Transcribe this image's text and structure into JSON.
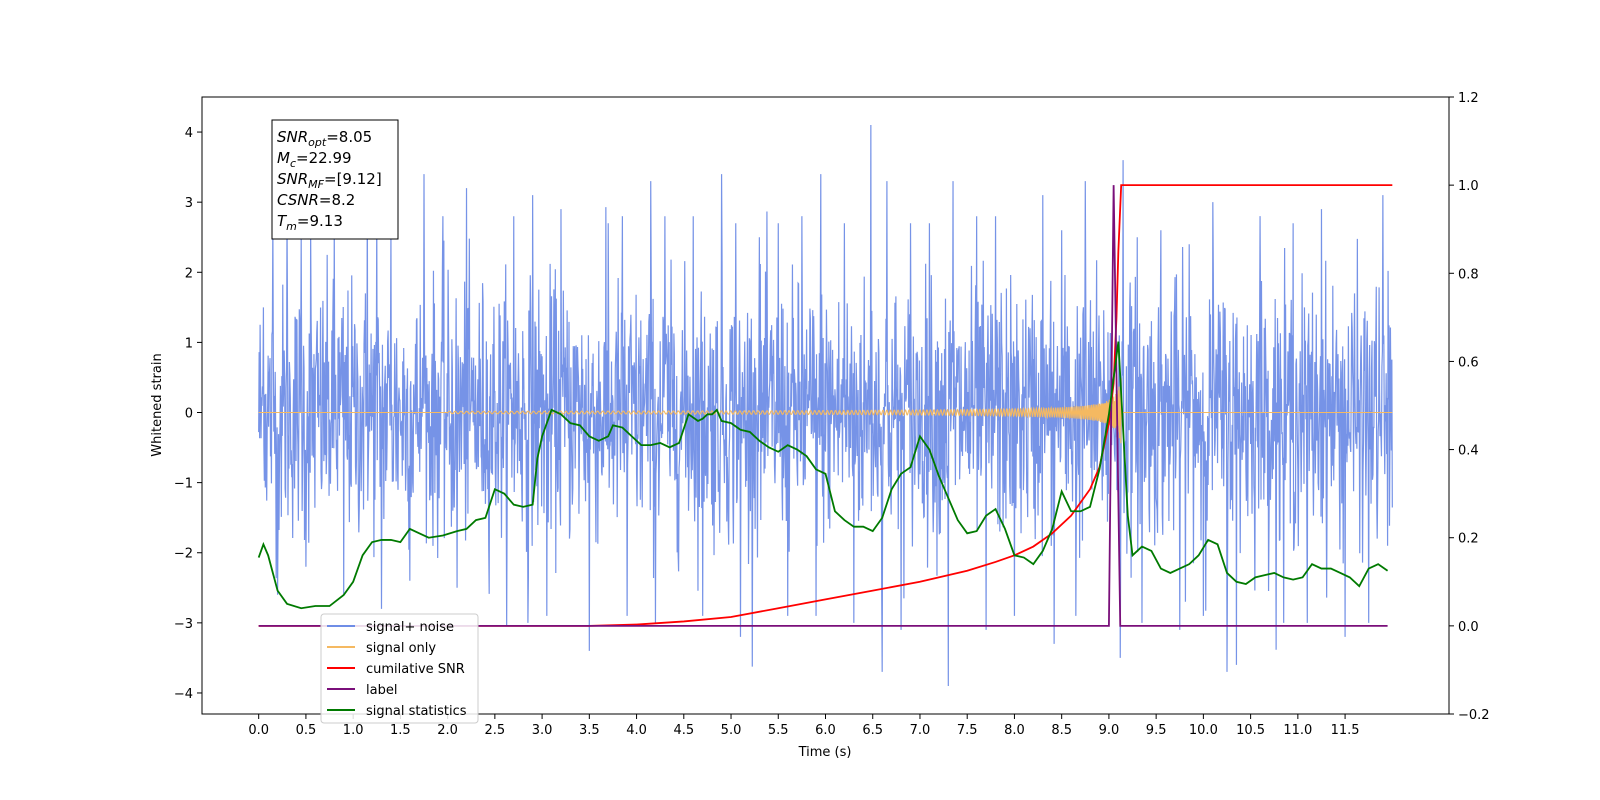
{
  "chart_data": {
    "type": "line",
    "xlabel": "Time (s)",
    "ylabel": "Whitened strain",
    "xlim": [
      -0.6,
      12.6
    ],
    "ylim": [
      -4.3,
      4.5
    ],
    "y2lim": [
      -0.2,
      1.2
    ],
    "x_ticks": [
      0.0,
      0.5,
      1.0,
      1.5,
      2.0,
      2.5,
      3.0,
      3.5,
      4.0,
      4.5,
      5.0,
      5.5,
      6.0,
      6.5,
      7.0,
      7.5,
      8.0,
      8.5,
      9.0,
      9.5,
      10.0,
      10.5,
      11.0,
      11.5
    ],
    "x_tick_labels": [
      "0.0",
      "0.5",
      "1.0",
      "1.5",
      "2.0",
      "2.5",
      "3.0",
      "3.5",
      "4.0",
      "4.5",
      "5.0",
      "5.5",
      "6.0",
      "6.5",
      "7.0",
      "7.5",
      "8.0",
      "8.5",
      "9.0",
      "9.5",
      "10.0",
      "10.5",
      "11.0",
      "11.5"
    ],
    "y_ticks": [
      -4,
      -3,
      -2,
      -1,
      0,
      1,
      2,
      3,
      4
    ],
    "y_tick_labels": [
      "−4",
      "−3",
      "−2",
      "−1",
      "0",
      "1",
      "2",
      "3",
      "4"
    ],
    "y2_ticks": [
      -0.2,
      0.0,
      0.2,
      0.4,
      0.6,
      0.8,
      1.0,
      1.2
    ],
    "y2_tick_labels": [
      "−0.2",
      "0.0",
      "0.2",
      "0.4",
      "0.6",
      "0.8",
      "1.0",
      "1.2"
    ],
    "grid": false,
    "legend_position": "lower-left",
    "info_box": {
      "lines": [
        {
          "base": "SNR",
          "sub": "opt",
          "value": "=8.05"
        },
        {
          "base": "M",
          "sub": "c",
          "value": "=22.99"
        },
        {
          "base": "SNR",
          "sub": "MF",
          "value": "=[9.12]"
        },
        {
          "base": "CSNR",
          "sub": "",
          "value": "=8.2"
        },
        {
          "base": "T",
          "sub": "m",
          "value": "=9.13"
        }
      ]
    },
    "merger_time": 9.13,
    "x_start": 0.0,
    "x_end": 12.0,
    "series": [
      {
        "name": "signal+ noise",
        "color": "#6f8de6",
        "axis": "left",
        "noise_std": 0.9,
        "spikes": [
          [
            0.05,
            1.5
          ],
          [
            0.15,
            2.7
          ],
          [
            0.3,
            2.8
          ],
          [
            0.45,
            2.5
          ],
          [
            0.55,
            2.6
          ],
          [
            0.8,
            2.7
          ],
          [
            1.15,
            3.3
          ],
          [
            1.25,
            2.9
          ],
          [
            1.4,
            2.6
          ],
          [
            1.75,
            3.4
          ],
          [
            1.95,
            2.8
          ],
          [
            2.2,
            3.2
          ],
          [
            2.7,
            2.8
          ],
          [
            2.9,
            3.1
          ],
          [
            3.05,
            2.4
          ],
          [
            3.2,
            2.9
          ],
          [
            3.7,
            2.7
          ],
          [
            3.85,
            2.8
          ],
          [
            4.15,
            3.3
          ],
          [
            4.3,
            2.8
          ],
          [
            4.6,
            2.8
          ],
          [
            4.9,
            3.4
          ],
          [
            5.05,
            2.7
          ],
          [
            5.3,
            2.5
          ],
          [
            5.5,
            2.7
          ],
          [
            5.75,
            2.8
          ],
          [
            5.95,
            3.4
          ],
          [
            6.2,
            2.7
          ],
          [
            6.48,
            4.1
          ],
          [
            6.65,
            3.3
          ],
          [
            6.9,
            2.7
          ],
          [
            7.1,
            2.7
          ],
          [
            7.35,
            3.3
          ],
          [
            7.6,
            2.8
          ],
          [
            7.8,
            2.8
          ],
          [
            8.0,
            2.6
          ],
          [
            8.3,
            3.1
          ],
          [
            8.5,
            2.6
          ],
          [
            8.75,
            3.3
          ],
          [
            9.15,
            3.6
          ],
          [
            9.3,
            2.5
          ],
          [
            9.55,
            2.6
          ],
          [
            9.85,
            2.4
          ],
          [
            10.1,
            3.0
          ],
          [
            10.35,
            3.2
          ],
          [
            10.6,
            2.8
          ],
          [
            10.95,
            2.7
          ],
          [
            11.25,
            2.9
          ],
          [
            11.5,
            3.2
          ],
          [
            11.75,
            3.0
          ],
          [
            11.9,
            3.1
          ],
          [
            0.2,
            -2.6
          ],
          [
            0.5,
            -2.2
          ],
          [
            0.9,
            -2.6
          ],
          [
            1.3,
            -2.8
          ],
          [
            1.6,
            -2.4
          ],
          [
            2.1,
            -2.5
          ],
          [
            2.85,
            -3.0
          ],
          [
            3.05,
            -2.9
          ],
          [
            3.5,
            -3.4
          ],
          [
            3.9,
            -2.9
          ],
          [
            4.2,
            -3.0
          ],
          [
            4.7,
            -2.9
          ],
          [
            5.1,
            -3.2
          ],
          [
            5.6,
            -2.9
          ],
          [
            5.9,
            -2.9
          ],
          [
            6.3,
            -3.0
          ],
          [
            6.6,
            -3.7
          ],
          [
            6.8,
            -3.1
          ],
          [
            7.3,
            -3.9
          ],
          [
            7.7,
            -3.1
          ],
          [
            8.0,
            -2.9
          ],
          [
            8.42,
            -3.3
          ],
          [
            8.65,
            -2.9
          ],
          [
            9.12,
            -3.5
          ],
          [
            9.35,
            -3.0
          ],
          [
            9.75,
            -3.1
          ],
          [
            10.0,
            -2.9
          ],
          [
            10.25,
            -3.7
          ],
          [
            10.35,
            -3.6
          ],
          [
            10.85,
            -3.0
          ],
          [
            11.1,
            -3.0
          ],
          [
            11.5,
            -3.2
          ],
          [
            11.75,
            -3.0
          ],
          [
            11.95,
            -1.9
          ]
        ]
      },
      {
        "name": "signal only",
        "color": "#f5b961",
        "axis": "left",
        "chirp": {
          "start": 2.0,
          "merger": 9.13,
          "peak_amplitude": 0.6
        }
      },
      {
        "name": "cumilative SNR",
        "color": "#ff0000",
        "axis": "right",
        "points": [
          [
            0.0,
            0.0
          ],
          [
            3.0,
            0.0
          ],
          [
            3.5,
            0.0
          ],
          [
            4.0,
            0.003
          ],
          [
            4.5,
            0.01
          ],
          [
            5.0,
            0.02
          ],
          [
            5.5,
            0.04
          ],
          [
            6.0,
            0.06
          ],
          [
            6.5,
            0.08
          ],
          [
            7.0,
            0.1
          ],
          [
            7.5,
            0.125
          ],
          [
            7.8,
            0.145
          ],
          [
            8.0,
            0.16
          ],
          [
            8.2,
            0.18
          ],
          [
            8.4,
            0.21
          ],
          [
            8.6,
            0.25
          ],
          [
            8.8,
            0.31
          ],
          [
            8.9,
            0.36
          ],
          [
            9.0,
            0.46
          ],
          [
            9.05,
            0.55
          ],
          [
            9.08,
            0.7
          ],
          [
            9.1,
            0.85
          ],
          [
            9.13,
            1.0
          ],
          [
            9.5,
            1.0
          ],
          [
            12.0,
            1.0
          ]
        ]
      },
      {
        "name": "label",
        "color": "#7a0f7a",
        "axis": "right",
        "points": [
          [
            0.0,
            0.0
          ],
          [
            9.0,
            0.0
          ],
          [
            9.05,
            1.0
          ],
          [
            9.12,
            0.0
          ],
          [
            11.95,
            0.0
          ]
        ]
      },
      {
        "name": "signal statistics",
        "color": "#007a00",
        "axis": "right",
        "points": [
          [
            0.0,
            0.155
          ],
          [
            0.05,
            0.185
          ],
          [
            0.1,
            0.16
          ],
          [
            0.2,
            0.08
          ],
          [
            0.3,
            0.05
          ],
          [
            0.45,
            0.04
          ],
          [
            0.6,
            0.045
          ],
          [
            0.75,
            0.045
          ],
          [
            0.9,
            0.07
          ],
          [
            1.0,
            0.1
          ],
          [
            1.1,
            0.16
          ],
          [
            1.2,
            0.19
          ],
          [
            1.3,
            0.195
          ],
          [
            1.4,
            0.195
          ],
          [
            1.5,
            0.19
          ],
          [
            1.6,
            0.22
          ],
          [
            1.7,
            0.21
          ],
          [
            1.8,
            0.2
          ],
          [
            1.95,
            0.205
          ],
          [
            2.1,
            0.215
          ],
          [
            2.2,
            0.22
          ],
          [
            2.3,
            0.24
          ],
          [
            2.4,
            0.245
          ],
          [
            2.5,
            0.31
          ],
          [
            2.6,
            0.3
          ],
          [
            2.7,
            0.275
          ],
          [
            2.8,
            0.27
          ],
          [
            2.9,
            0.275
          ],
          [
            2.95,
            0.38
          ],
          [
            3.0,
            0.43
          ],
          [
            3.1,
            0.49
          ],
          [
            3.2,
            0.48
          ],
          [
            3.3,
            0.46
          ],
          [
            3.4,
            0.455
          ],
          [
            3.5,
            0.43
          ],
          [
            3.6,
            0.42
          ],
          [
            3.7,
            0.43
          ],
          [
            3.75,
            0.455
          ],
          [
            3.85,
            0.45
          ],
          [
            3.95,
            0.43
          ],
          [
            4.05,
            0.41
          ],
          [
            4.15,
            0.41
          ],
          [
            4.25,
            0.415
          ],
          [
            4.35,
            0.405
          ],
          [
            4.45,
            0.415
          ],
          [
            4.55,
            0.48
          ],
          [
            4.65,
            0.465
          ],
          [
            4.7,
            0.47
          ],
          [
            4.75,
            0.48
          ],
          [
            4.8,
            0.48
          ],
          [
            4.85,
            0.49
          ],
          [
            4.9,
            0.465
          ],
          [
            5.0,
            0.46
          ],
          [
            5.1,
            0.445
          ],
          [
            5.2,
            0.44
          ],
          [
            5.3,
            0.42
          ],
          [
            5.4,
            0.405
          ],
          [
            5.5,
            0.395
          ],
          [
            5.6,
            0.41
          ],
          [
            5.7,
            0.4
          ],
          [
            5.8,
            0.385
          ],
          [
            5.9,
            0.355
          ],
          [
            6.0,
            0.345
          ],
          [
            6.1,
            0.26
          ],
          [
            6.2,
            0.24
          ],
          [
            6.3,
            0.225
          ],
          [
            6.4,
            0.225
          ],
          [
            6.5,
            0.215
          ],
          [
            6.6,
            0.245
          ],
          [
            6.7,
            0.31
          ],
          [
            6.8,
            0.345
          ],
          [
            6.9,
            0.36
          ],
          [
            7.0,
            0.43
          ],
          [
            7.1,
            0.4
          ],
          [
            7.2,
            0.34
          ],
          [
            7.3,
            0.29
          ],
          [
            7.4,
            0.24
          ],
          [
            7.5,
            0.21
          ],
          [
            7.6,
            0.215
          ],
          [
            7.7,
            0.25
          ],
          [
            7.8,
            0.265
          ],
          [
            7.9,
            0.22
          ],
          [
            8.0,
            0.16
          ],
          [
            8.1,
            0.155
          ],
          [
            8.2,
            0.14
          ],
          [
            8.3,
            0.17
          ],
          [
            8.4,
            0.22
          ],
          [
            8.5,
            0.305
          ],
          [
            8.6,
            0.26
          ],
          [
            8.7,
            0.26
          ],
          [
            8.8,
            0.27
          ],
          [
            8.9,
            0.355
          ],
          [
            9.0,
            0.48
          ],
          [
            9.1,
            0.645
          ],
          [
            9.2,
            0.25
          ],
          [
            9.25,
            0.16
          ],
          [
            9.3,
            0.17
          ],
          [
            9.35,
            0.18
          ],
          [
            9.45,
            0.17
          ],
          [
            9.55,
            0.13
          ],
          [
            9.65,
            0.12
          ],
          [
            9.75,
            0.13
          ],
          [
            9.85,
            0.14
          ],
          [
            9.95,
            0.16
          ],
          [
            10.05,
            0.195
          ],
          [
            10.15,
            0.185
          ],
          [
            10.25,
            0.12
          ],
          [
            10.35,
            0.1
          ],
          [
            10.45,
            0.095
          ],
          [
            10.55,
            0.11
          ],
          [
            10.65,
            0.115
          ],
          [
            10.75,
            0.12
          ],
          [
            10.85,
            0.11
          ],
          [
            10.95,
            0.105
          ],
          [
            11.05,
            0.11
          ],
          [
            11.15,
            0.14
          ],
          [
            11.25,
            0.13
          ],
          [
            11.35,
            0.13
          ],
          [
            11.45,
            0.12
          ],
          [
            11.55,
            0.11
          ],
          [
            11.65,
            0.09
          ],
          [
            11.75,
            0.13
          ],
          [
            11.85,
            0.14
          ],
          [
            11.95,
            0.125
          ]
        ]
      },
      {
        "name": "",
        "color": "#007a00",
        "axis": "right",
        "points": []
      }
    ]
  },
  "legend": {
    "items": [
      {
        "label": "signal+ noise",
        "color": "#6f8de6"
      },
      {
        "label": "signal only",
        "color": "#f5b961"
      },
      {
        "label": "cumilative SNR",
        "color": "#ff0000"
      },
      {
        "label": "label",
        "color": "#7a0f7a"
      },
      {
        "label": "signal statistics",
        "color": "#007a00"
      }
    ],
    "hidden_text": [
      "signal only",
      "noise"
    ]
  }
}
